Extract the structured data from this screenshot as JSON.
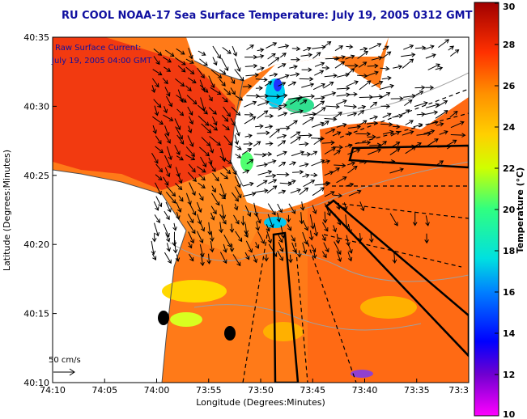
{
  "title": "RU COOL  NOAA-17  Sea Surface Temperature:  July 19, 2005 0312 GMT",
  "legend": {
    "line1": "Raw Surface Current:",
    "line2": "July 19, 2005 04:00 GMT",
    "scale_label": "50 cm/s"
  },
  "axes": {
    "xlabel": "Longitude (Degrees:Minutes)",
    "ylabel": "Latitude (Degrees:Minutes)",
    "xticks": [
      "74:10",
      "74:05",
      "74:00",
      "73:55",
      "73:50",
      "73:45",
      "73:40",
      "73:35",
      "73:3"
    ],
    "yticks": [
      "40:35",
      "40:30",
      "40:25",
      "40:20",
      "40:15",
      "40:10"
    ]
  },
  "colorbar": {
    "label": "Temperature (°C)",
    "ticks": [
      "30",
      "28",
      "26",
      "24",
      "22",
      "20",
      "18",
      "16",
      "14",
      "12",
      "10"
    ],
    "min": 10,
    "max": 30,
    "colors": [
      "#ff00ff",
      "#6a00c8",
      "#0000ff",
      "#0090ff",
      "#00e8e8",
      "#40ff80",
      "#d8ff00",
      "#ffd800",
      "#ff9000",
      "#ff3000",
      "#a00000"
    ]
  }
}
